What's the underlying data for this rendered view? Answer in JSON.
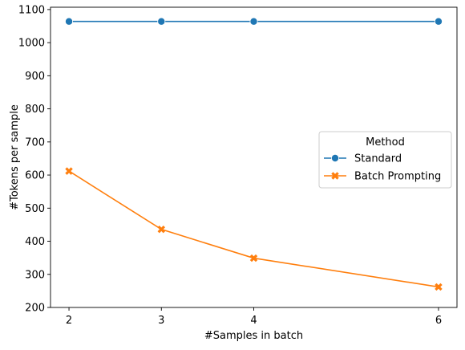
{
  "chart_data": {
    "type": "line",
    "xlabel": "#Samples in batch",
    "ylabel": "#Tokens per sample",
    "x": [
      2,
      3,
      4,
      6
    ],
    "xticks": [
      2,
      3,
      4,
      6
    ],
    "yticks": [
      200,
      300,
      400,
      500,
      600,
      700,
      800,
      900,
      1000,
      1100
    ],
    "xlim": [
      1.8,
      6.2
    ],
    "ylim": [
      200,
      1107
    ],
    "grid": false,
    "legend": {
      "title": "Method",
      "placement": "center-right"
    },
    "series": [
      {
        "name": "Standard",
        "values": [
          1064,
          1064,
          1064,
          1064
        ],
        "color": "#1f77b4",
        "marker": "circle"
      },
      {
        "name": "Batch Prompting",
        "values": [
          612,
          436,
          349,
          262
        ],
        "color": "#ff7f0e",
        "marker": "x"
      }
    ]
  }
}
